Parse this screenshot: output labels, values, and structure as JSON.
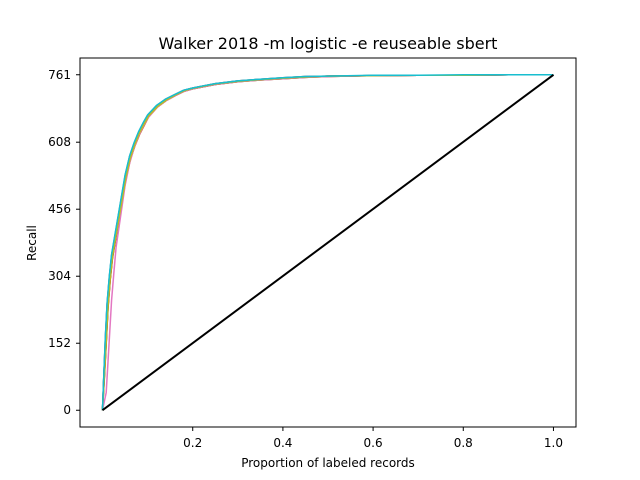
{
  "chart_data": {
    "type": "line",
    "title": "Walker 2018 -m logistic -e reuseable sbert",
    "xlabel": "Proportion of labeled records",
    "ylabel": "Recall",
    "xlim": [
      -0.05,
      1.05
    ],
    "ylim": [
      -38,
      799
    ],
    "x_ticks": [
      0.2,
      0.4,
      0.6,
      0.8,
      1.0
    ],
    "x_tick_labels": [
      "0.2",
      "0.4",
      "0.6",
      "0.8",
      "1.0"
    ],
    "y_ticks": [
      0,
      152,
      304,
      456,
      608,
      761
    ],
    "y_tick_labels": [
      "0",
      "152",
      "304",
      "456",
      "608",
      "761"
    ],
    "grid": false,
    "legend": "none",
    "series": [
      {
        "color": "#1f77b4",
        "x": [
          0,
          0.003,
          0.006,
          0.01,
          0.015,
          0.02,
          0.03,
          0.04,
          0.05,
          0.06,
          0.07,
          0.08,
          0.09,
          0.1,
          0.12,
          0.14,
          0.16,
          0.18,
          0.2,
          0.22,
          0.25,
          0.3,
          0.35,
          0.4,
          0.45,
          0.5,
          0.6,
          0.7,
          0.8,
          0.9,
          1.0
        ],
        "values": [
          0,
          80,
          160,
          240,
          300,
          350,
          410,
          470,
          530,
          575,
          605,
          630,
          650,
          668,
          690,
          705,
          715,
          725,
          730,
          734,
          740,
          746,
          750,
          753,
          756,
          758,
          759,
          760,
          760,
          761,
          761
        ]
      },
      {
        "color": "#ff7f0e",
        "x": [
          0,
          0.004,
          0.008,
          0.012,
          0.017,
          0.022,
          0.032,
          0.042,
          0.052,
          0.062,
          0.072,
          0.082,
          0.092,
          0.102,
          0.122,
          0.142,
          0.162,
          0.182,
          0.2,
          0.22,
          0.25,
          0.3,
          0.35,
          0.4,
          0.45,
          0.5,
          0.6,
          0.7,
          0.8,
          0.9,
          1.0
        ],
        "values": [
          0,
          70,
          150,
          230,
          295,
          345,
          405,
          465,
          525,
          570,
          600,
          625,
          645,
          665,
          688,
          703,
          714,
          724,
          729,
          733,
          739,
          745,
          749,
          752,
          755,
          757,
          759,
          760,
          760,
          761,
          761
        ]
      },
      {
        "color": "#2ca02c",
        "x": [
          0,
          0.003,
          0.007,
          0.011,
          0.016,
          0.021,
          0.031,
          0.041,
          0.051,
          0.061,
          0.071,
          0.081,
          0.091,
          0.101,
          0.121,
          0.141,
          0.161,
          0.181,
          0.2,
          0.22,
          0.25,
          0.3,
          0.35,
          0.4,
          0.45,
          0.5,
          0.6,
          0.7,
          0.8,
          0.9,
          1.0
        ],
        "values": [
          0,
          85,
          165,
          245,
          305,
          355,
          415,
          475,
          535,
          578,
          607,
          632,
          652,
          670,
          692,
          706,
          716,
          726,
          731,
          735,
          741,
          747,
          751,
          754,
          757,
          758,
          759,
          760,
          760,
          761,
          761
        ]
      },
      {
        "color": "#d62728",
        "x": [
          0,
          0.004,
          0.008,
          0.012,
          0.017,
          0.022,
          0.032,
          0.042,
          0.052,
          0.062,
          0.072,
          0.082,
          0.092,
          0.102,
          0.122,
          0.142,
          0.162,
          0.182,
          0.2,
          0.22,
          0.25,
          0.3,
          0.35,
          0.4,
          0.45,
          0.5,
          0.6,
          0.7,
          0.8,
          0.9,
          1.0
        ],
        "values": [
          0,
          75,
          155,
          235,
          298,
          348,
          408,
          468,
          528,
          572,
          603,
          628,
          648,
          666,
          689,
          704,
          715,
          725,
          730,
          734,
          740,
          746,
          750,
          753,
          756,
          758,
          759,
          760,
          760,
          761,
          761
        ]
      },
      {
        "color": "#9467bd",
        "x": [
          0,
          0.003,
          0.006,
          0.01,
          0.015,
          0.02,
          0.03,
          0.04,
          0.05,
          0.06,
          0.07,
          0.08,
          0.09,
          0.1,
          0.12,
          0.14,
          0.16,
          0.18,
          0.2,
          0.22,
          0.25,
          0.3,
          0.35,
          0.4,
          0.45,
          0.5,
          0.6,
          0.7,
          0.8,
          0.9,
          1.0
        ],
        "values": [
          0,
          82,
          162,
          242,
          302,
          352,
          412,
          472,
          532,
          576,
          606,
          631,
          651,
          669,
          691,
          706,
          716,
          726,
          731,
          735,
          741,
          747,
          751,
          754,
          757,
          758,
          759,
          760,
          760,
          761,
          761
        ]
      },
      {
        "color": "#8c564b",
        "x": [
          0,
          0.004,
          0.008,
          0.012,
          0.017,
          0.022,
          0.032,
          0.042,
          0.052,
          0.062,
          0.072,
          0.082,
          0.092,
          0.102,
          0.122,
          0.142,
          0.162,
          0.182,
          0.2,
          0.22,
          0.25,
          0.3,
          0.35,
          0.4,
          0.45,
          0.5,
          0.6,
          0.7,
          0.8,
          0.9,
          1.0
        ],
        "values": [
          0,
          72,
          152,
          232,
          296,
          346,
          406,
          466,
          526,
          571,
          601,
          626,
          646,
          666,
          688,
          703,
          714,
          724,
          729,
          733,
          739,
          745,
          749,
          752,
          755,
          757,
          759,
          760,
          760,
          761,
          761
        ]
      },
      {
        "color": "#e377c2",
        "x": [
          0,
          0.008,
          0.012,
          0.016,
          0.02,
          0.025,
          0.03,
          0.04,
          0.05,
          0.06,
          0.07,
          0.08,
          0.09,
          0.1,
          0.12,
          0.14,
          0.16,
          0.18,
          0.2,
          0.22,
          0.25,
          0.3,
          0.35,
          0.4,
          0.45,
          0.5,
          0.6,
          0.7,
          0.8,
          0.9,
          1.0
        ],
        "values": [
          0,
          40,
          110,
          180,
          250,
          310,
          370,
          440,
          510,
          560,
          595,
          622,
          643,
          662,
          686,
          702,
          713,
          723,
          729,
          733,
          739,
          745,
          749,
          752,
          755,
          757,
          759,
          760,
          760,
          761,
          761
        ]
      },
      {
        "color": "#7f7f7f",
        "x": [
          0,
          0.003,
          0.007,
          0.011,
          0.016,
          0.021,
          0.031,
          0.041,
          0.051,
          0.061,
          0.071,
          0.081,
          0.091,
          0.101,
          0.121,
          0.141,
          0.161,
          0.181,
          0.2,
          0.22,
          0.25,
          0.3,
          0.35,
          0.4,
          0.45,
          0.5,
          0.6,
          0.7,
          0.8,
          0.9,
          1.0
        ],
        "values": [
          0,
          78,
          158,
          238,
          300,
          350,
          410,
          470,
          530,
          574,
          604,
          629,
          649,
          667,
          690,
          705,
          715,
          725,
          730,
          734,
          740,
          746,
          750,
          753,
          756,
          758,
          759,
          760,
          760,
          761,
          761
        ]
      },
      {
        "color": "#bcbd22",
        "x": [
          0,
          0.004,
          0.008,
          0.012,
          0.017,
          0.022,
          0.032,
          0.042,
          0.052,
          0.062,
          0.072,
          0.082,
          0.092,
          0.102,
          0.122,
          0.142,
          0.162,
          0.182,
          0.2,
          0.22,
          0.25,
          0.3,
          0.35,
          0.4,
          0.45,
          0.5,
          0.6,
          0.7,
          0.8,
          0.9,
          1.0
        ],
        "values": [
          0,
          76,
          156,
          236,
          299,
          349,
          409,
          469,
          529,
          573,
          604,
          629,
          649,
          667,
          689,
          704,
          715,
          725,
          730,
          734,
          740,
          746,
          750,
          753,
          756,
          758,
          759,
          760,
          760,
          761,
          761
        ]
      },
      {
        "color": "#17becf",
        "x": [
          0,
          0.003,
          0.006,
          0.01,
          0.015,
          0.02,
          0.03,
          0.04,
          0.05,
          0.06,
          0.07,
          0.08,
          0.09,
          0.1,
          0.12,
          0.14,
          0.16,
          0.18,
          0.2,
          0.22,
          0.25,
          0.3,
          0.35,
          0.4,
          0.45,
          0.5,
          0.6,
          0.7,
          0.8,
          0.9,
          1.0
        ],
        "values": [
          0,
          84,
          164,
          244,
          304,
          354,
          414,
          474,
          534,
          577,
          607,
          632,
          652,
          670,
          692,
          706,
          716,
          726,
          731,
          735,
          741,
          747,
          751,
          754,
          757,
          758,
          760,
          760,
          761,
          761,
          761
        ]
      },
      {
        "color": "#000000",
        "x": [
          0,
          1.0
        ],
        "values": [
          0,
          761
        ]
      }
    ]
  }
}
